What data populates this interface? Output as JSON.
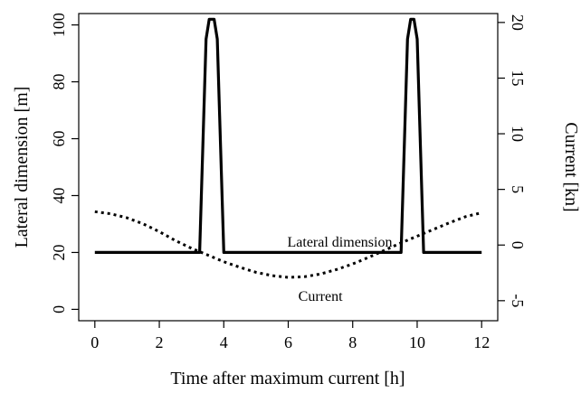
{
  "chart_data": {
    "type": "line",
    "title": "",
    "xlabel": "Time after maximum current [h]",
    "ylabel": "Lateral dimension [m]",
    "y2label": "Current [kn]",
    "xlim": [
      -0.5,
      12.5
    ],
    "ylim": [
      -4,
      104
    ],
    "y2lim": [
      -6.8,
      20.8
    ],
    "xticks": [
      0,
      2,
      4,
      6,
      8,
      10,
      12
    ],
    "yticks": [
      0,
      20,
      40,
      60,
      80,
      100
    ],
    "y2ticks": [
      -5,
      0,
      5,
      10,
      15,
      20
    ],
    "grid": false,
    "legend": "none",
    "series": [
      {
        "axis": "left",
        "style": "solid",
        "x": [
          0,
          3.25,
          3.45,
          3.55,
          3.7,
          3.8,
          4.0,
          9.5,
          9.7,
          9.8,
          9.9,
          10.0,
          10.2,
          12
        ],
        "y": [
          20,
          20,
          95,
          102,
          102,
          95,
          20,
          20,
          95,
          102,
          102,
          95,
          20,
          20
        ]
      },
      {
        "axis": "right",
        "style": "dotted",
        "x": [
          0,
          0.5,
          1,
          1.5,
          2,
          2.5,
          3,
          3.5,
          4,
          4.5,
          5,
          5.5,
          6,
          6.5,
          7,
          7.5,
          8,
          8.5,
          9,
          9.5,
          10,
          10.5,
          11,
          11.5,
          12
        ],
        "y": [
          3.0,
          2.8,
          2.45,
          1.9,
          1.2,
          0.4,
          -0.3,
          -0.9,
          -1.5,
          -2.0,
          -2.45,
          -2.75,
          -2.9,
          -2.85,
          -2.6,
          -2.2,
          -1.7,
          -1.1,
          -0.45,
          0.2,
          0.8,
          1.4,
          2.0,
          2.55,
          2.9
        ]
      }
    ],
    "annotations": [
      {
        "text": "Lateral dimension",
        "x": 7.6,
        "y": 22
      },
      {
        "text": "Current",
        "x": 7.0,
        "y": 3
      }
    ]
  }
}
